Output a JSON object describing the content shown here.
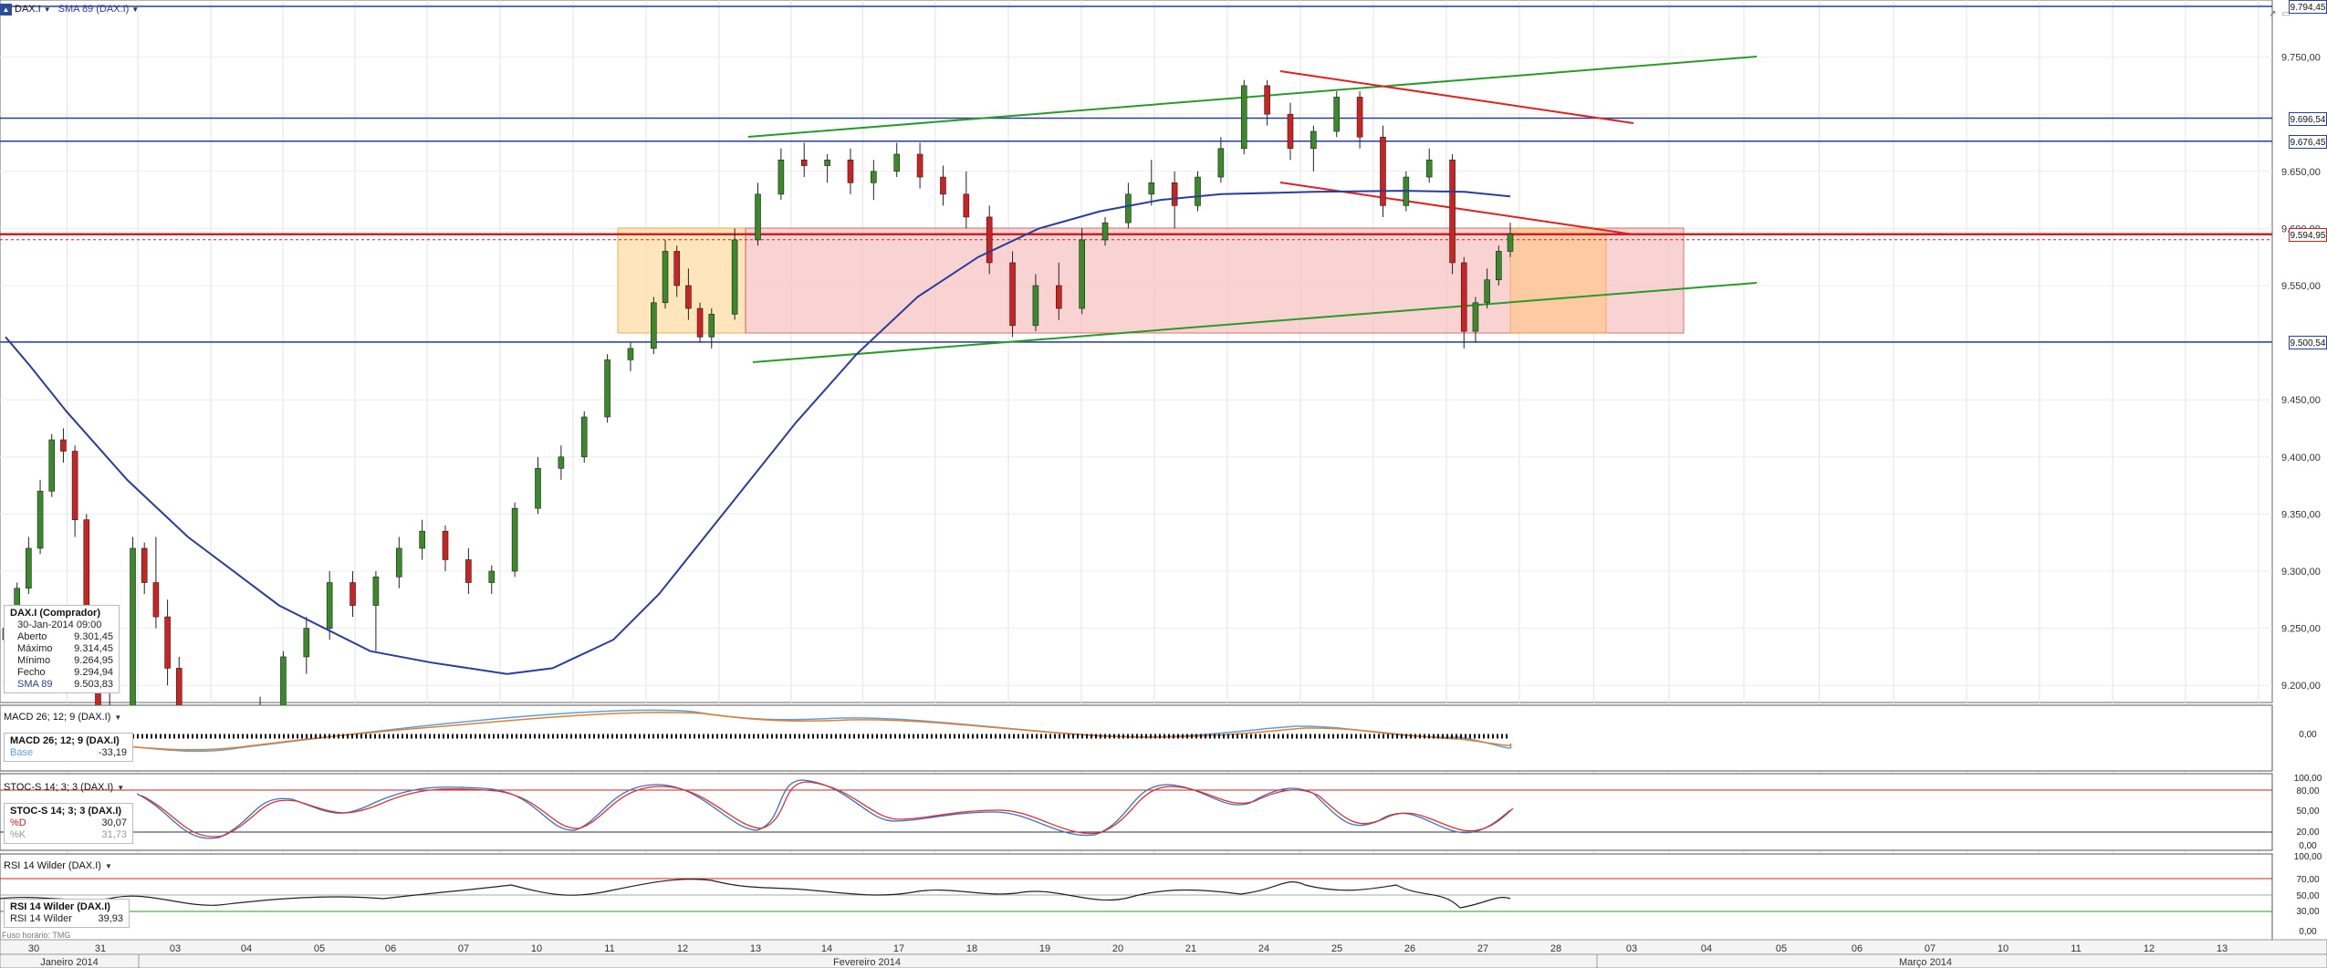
{
  "toolbar": {
    "symbol": "DAX.I",
    "indicator": "SMA 89 (DAX.I)"
  },
  "price_axis": {
    "ticks": [
      "9.750,00",
      "9.650,00",
      "9.600,00",
      "9.550,00",
      "9.450,00",
      "9.400,00",
      "9.350,00",
      "9.300,00",
      "9.250,00",
      "9.200,00"
    ],
    "labels": [
      {
        "text": "9.794,45",
        "value": 9794.45,
        "color": "#2b3d9a"
      },
      {
        "text": "9.696,54",
        "value": 9696.54,
        "color": "#2b3d9a"
      },
      {
        "text": "9.676,45",
        "value": 9676.45,
        "color": "#2b3d9a"
      },
      {
        "text": "9.594,95",
        "value": 9594.95,
        "color": "#cc2222"
      },
      {
        "text": "9.500,54",
        "value": 9500.54,
        "color": "#2b3d9a"
      }
    ]
  },
  "info_box": {
    "title": "DAX.I (Comprador)",
    "datetime": "30-Jan-2014 09:00",
    "rows": [
      {
        "k": "Aberto",
        "v": "9.301,45"
      },
      {
        "k": "Máximo",
        "v": "9.314,45"
      },
      {
        "k": "Mínimo",
        "v": "9.264,95"
      },
      {
        "k": "Fecho",
        "v": "9.294,94"
      },
      {
        "k": "SMA 89",
        "v": "9.503,83"
      }
    ]
  },
  "macd": {
    "header": "MACD 26; 12; 9 (DAX.I)",
    "box_title": "MACD 26; 12; 9 (DAX.I)",
    "box_key": "Base",
    "box_value": "-33,19",
    "axis_label": "0,00"
  },
  "stoch": {
    "header": "STOC-S 14; 3; 3 (DAX.I)",
    "box_title": "STOC-S 14; 3; 3 (DAX.I)",
    "box_rows": [
      {
        "k": "%D",
        "v": "30,07"
      },
      {
        "k": "%K",
        "v": "31,73"
      }
    ],
    "axis_labels": [
      "100,00",
      "80,00",
      "50,00",
      "20,00",
      "0,00"
    ]
  },
  "rsi": {
    "header": "RSI 14 Wilder (DAX.I)",
    "box_title": "RSI 14 Wilder (DAX.I)",
    "box_key": "RSI 14 Wilder",
    "box_value": "39,93",
    "axis_labels": [
      "100,00",
      "70,00",
      "50,00",
      "30,00",
      "0,00"
    ]
  },
  "footnote": "Fuso horário: TMG",
  "time_axis": {
    "days": [
      "30",
      "31",
      "03",
      "04",
      "05",
      "06",
      "07",
      "10",
      "11",
      "12",
      "13",
      "14",
      "17",
      "18",
      "19",
      "20",
      "21",
      "24",
      "25",
      "26",
      "27",
      "28",
      "03",
      "04",
      "05",
      "06",
      "07",
      "10",
      "11",
      "12",
      "13"
    ],
    "months": [
      "Janeiro 2014",
      "Fevereiro 2014",
      "Março 2014"
    ]
  },
  "colors": {
    "up": "#3a8a2a",
    "down": "#cc2222",
    "sma": "#2b3d9a",
    "trend_green": "#2a9a2a",
    "trend_red": "#dd2222",
    "zone_red": "#f5b5b5",
    "zone_orange": "#ffd8a0"
  },
  "chart_data": {
    "type": "candlestick",
    "symbol": "DAX.I",
    "timeframe": "hourly",
    "ylim": [
      9185,
      9800
    ],
    "horizontal_levels": [
      9794.45,
      9696.54,
      9676.45,
      9594.95,
      9500.54
    ],
    "sma89": [
      [
        0,
        9505
      ],
      [
        8,
        9480
      ],
      [
        20,
        9440
      ],
      [
        40,
        9380
      ],
      [
        60,
        9330
      ],
      [
        90,
        9270
      ],
      [
        120,
        9230
      ],
      [
        140,
        9220
      ],
      [
        165,
        9210
      ],
      [
        180,
        9215
      ],
      [
        200,
        9240
      ],
      [
        215,
        9280
      ],
      [
        230,
        9330
      ],
      [
        245,
        9380
      ],
      [
        260,
        9430
      ],
      [
        280,
        9490
      ],
      [
        300,
        9540
      ],
      [
        320,
        9575
      ],
      [
        340,
        9600
      ],
      [
        360,
        9615
      ],
      [
        380,
        9625
      ],
      [
        400,
        9630
      ],
      [
        430,
        9632
      ],
      [
        460,
        9633
      ],
      [
        480,
        9632
      ],
      [
        495,
        9628
      ]
    ],
    "candles": [
      [
        0,
        9240,
        9260,
        9225,
        9250
      ],
      [
        2,
        9250,
        9290,
        9245,
        9285
      ],
      [
        4,
        9285,
        9330,
        9280,
        9320
      ],
      [
        6,
        9320,
        9380,
        9315,
        9370
      ],
      [
        8,
        9370,
        9420,
        9365,
        9415
      ],
      [
        10,
        9415,
        9425,
        9395,
        9405
      ],
      [
        12,
        9405,
        9410,
        9330,
        9345
      ],
      [
        14,
        9345,
        9350,
        9230,
        9245
      ],
      [
        16,
        9245,
        9255,
        9170,
        9180
      ],
      [
        18,
        9180,
        9200,
        9140,
        9150
      ],
      [
        22,
        9150,
        9330,
        9145,
        9320
      ],
      [
        24,
        9320,
        9325,
        9280,
        9290
      ],
      [
        26,
        9290,
        9330,
        9250,
        9260
      ],
      [
        28,
        9260,
        9275,
        9200,
        9215
      ],
      [
        30,
        9215,
        9225,
        9150,
        9160
      ],
      [
        44,
        9140,
        9190,
        9130,
        9180
      ],
      [
        48,
        9180,
        9230,
        9170,
        9225
      ],
      [
        52,
        9225,
        9260,
        9210,
        9250
      ],
      [
        56,
        9250,
        9300,
        9240,
        9290
      ],
      [
        60,
        9290,
        9300,
        9260,
        9270
      ],
      [
        64,
        9270,
        9300,
        9230,
        9295
      ],
      [
        68,
        9295,
        9330,
        9285,
        9320
      ],
      [
        72,
        9320,
        9345,
        9310,
        9335
      ],
      [
        76,
        9335,
        9340,
        9300,
        9310
      ],
      [
        80,
        9310,
        9320,
        9280,
        9290
      ],
      [
        84,
        9290,
        9305,
        9280,
        9300
      ],
      [
        88,
        9300,
        9360,
        9295,
        9355
      ],
      [
        92,
        9355,
        9400,
        9350,
        9390
      ],
      [
        96,
        9390,
        9410,
        9380,
        9400
      ],
      [
        100,
        9400,
        9440,
        9395,
        9435
      ],
      [
        104,
        9435,
        9490,
        9430,
        9485
      ],
      [
        108,
        9485,
        9500,
        9475,
        9495
      ],
      [
        112,
        9495,
        9540,
        9490,
        9535
      ],
      [
        114,
        9535,
        9590,
        9530,
        9580
      ],
      [
        116,
        9580,
        9585,
        9540,
        9550
      ],
      [
        118,
        9550,
        9565,
        9520,
        9530
      ],
      [
        120,
        9530,
        9535,
        9500,
        9505
      ],
      [
        122,
        9505,
        9530,
        9495,
        9525
      ],
      [
        126,
        9525,
        9600,
        9520,
        9590
      ],
      [
        130,
        9590,
        9640,
        9585,
        9630
      ],
      [
        134,
        9630,
        9670,
        9625,
        9660
      ],
      [
        138,
        9660,
        9675,
        9645,
        9655
      ],
      [
        142,
        9655,
        9665,
        9640,
        9660
      ],
      [
        146,
        9660,
        9670,
        9630,
        9640
      ],
      [
        150,
        9640,
        9660,
        9625,
        9650
      ],
      [
        154,
        9650,
        9675,
        9645,
        9665
      ],
      [
        158,
        9665,
        9675,
        9635,
        9645
      ],
      [
        162,
        9645,
        9655,
        9620,
        9630
      ],
      [
        166,
        9630,
        9650,
        9600,
        9610
      ],
      [
        170,
        9610,
        9620,
        9560,
        9570
      ],
      [
        174,
        9570,
        9580,
        9505,
        9515
      ],
      [
        178,
        9515,
        9560,
        9510,
        9550
      ],
      [
        182,
        9550,
        9570,
        9520,
        9530
      ],
      [
        186,
        9530,
        9600,
        9525,
        9590
      ],
      [
        190,
        9590,
        9610,
        9585,
        9605
      ],
      [
        194,
        9605,
        9640,
        9600,
        9630
      ],
      [
        198,
        9630,
        9660,
        9620,
        9640
      ],
      [
        202,
        9640,
        9650,
        9600,
        9620
      ],
      [
        206,
        9620,
        9650,
        9615,
        9645
      ],
      [
        210,
        9645,
        9680,
        9640,
        9670
      ],
      [
        214,
        9670,
        9730,
        9665,
        9725
      ],
      [
        218,
        9725,
        9730,
        9690,
        9700
      ],
      [
        222,
        9700,
        9710,
        9660,
        9670
      ],
      [
        226,
        9670,
        9690,
        9650,
        9685
      ],
      [
        230,
        9685,
        9720,
        9680,
        9715
      ],
      [
        234,
        9715,
        9720,
        9670,
        9680
      ],
      [
        238,
        9680,
        9690,
        9610,
        9620
      ],
      [
        242,
        9620,
        9650,
        9615,
        9645
      ],
      [
        246,
        9645,
        9670,
        9640,
        9660
      ],
      [
        250,
        9660,
        9665,
        9560,
        9570
      ],
      [
        252,
        9570,
        9575,
        9495,
        9510
      ],
      [
        254,
        9510,
        9540,
        9500,
        9535
      ],
      [
        256,
        9535,
        9565,
        9530,
        9555
      ],
      [
        258,
        9555,
        9585,
        9550,
        9580
      ],
      [
        260,
        9580,
        9605,
        9575,
        9595
      ]
    ]
  }
}
